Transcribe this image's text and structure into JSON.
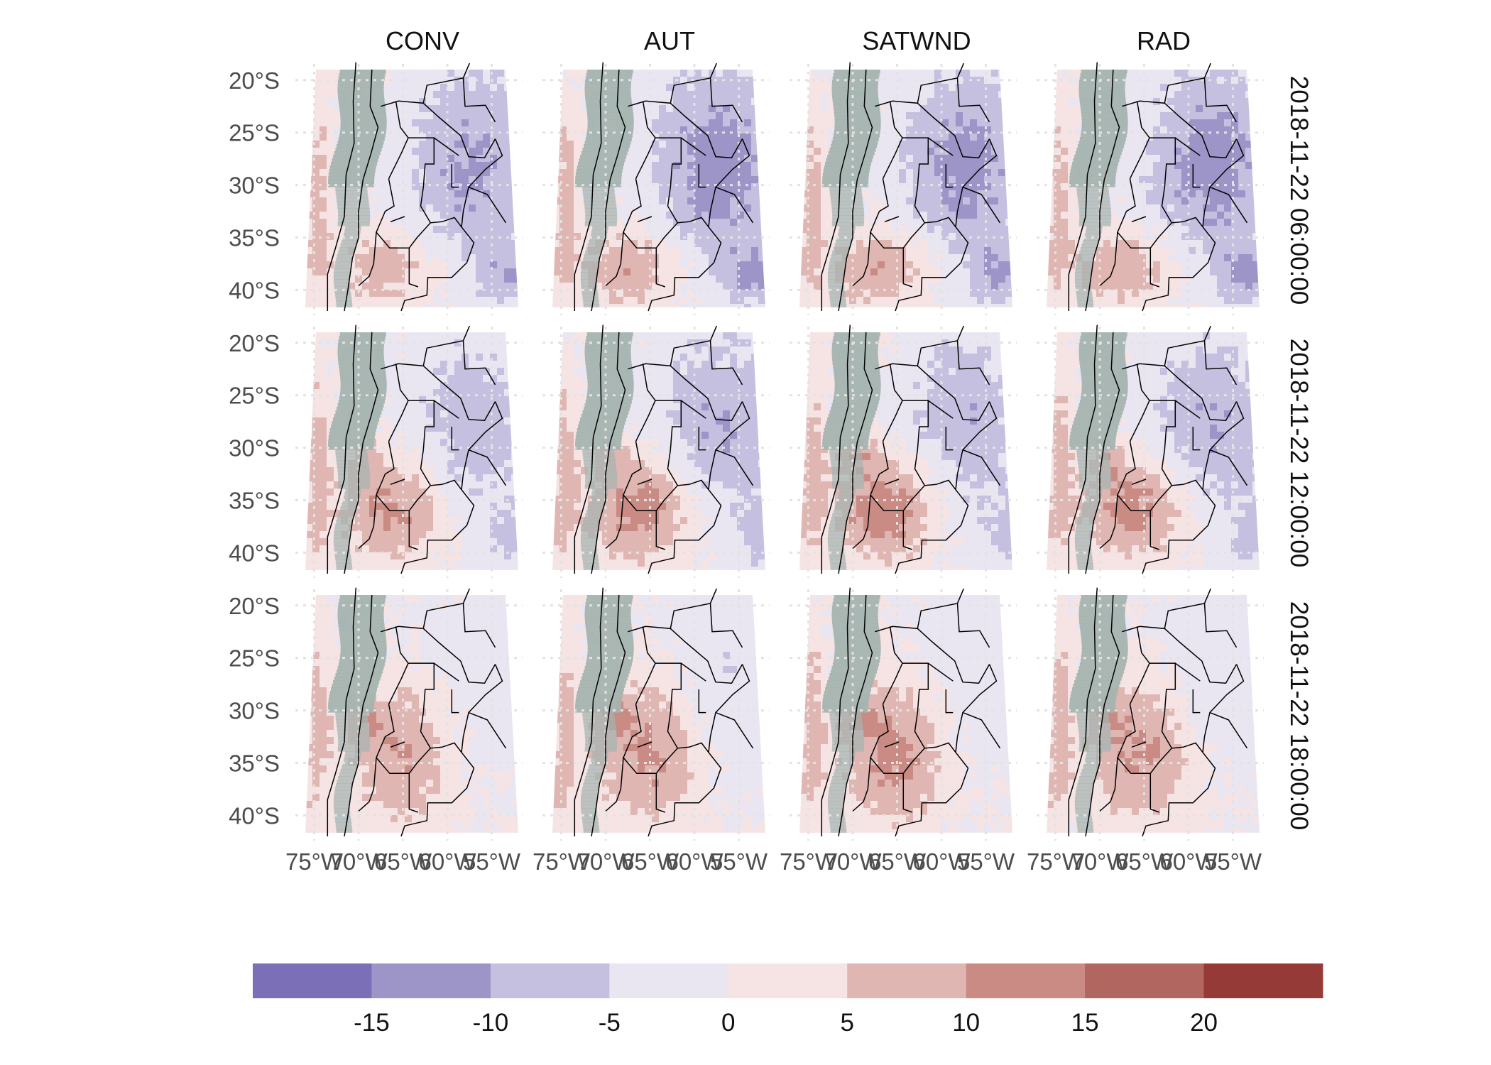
{
  "chart_data": {
    "type": "heatmap",
    "title": "",
    "panels": {
      "columns": [
        "CONV",
        "AUT",
        "SATWND",
        "RAD"
      ],
      "rows": [
        "2018-11-22 06:00:00",
        "2018-11-22 12:00:00",
        "2018-11-22 18:00:00"
      ]
    },
    "x_ticks": [
      "75°W",
      "70°W",
      "65°W",
      "60°W",
      "55°W"
    ],
    "y_ticks": [
      "20°S",
      "25°S",
      "30°S",
      "35°S",
      "40°S"
    ],
    "lon_range": [
      -76,
      -52
    ],
    "lat_range": [
      -42,
      -19
    ],
    "grid": true,
    "colorbar": {
      "position": "bottom",
      "breaks": [
        -20,
        -15,
        -10,
        -5,
        0,
        5,
        10,
        15,
        20,
        25
      ],
      "tick_labels": [
        "-15",
        "-10",
        "-5",
        "0",
        "5",
        "10",
        "15",
        "20"
      ],
      "colors": [
        "#7b6fb7",
        "#9d94c8",
        "#c5bfe0",
        "#e9e6f2",
        "#f5e4e3",
        "#dfb6b2",
        "#c98b84",
        "#b16760",
        "#953a37"
      ]
    },
    "topography_color": "#a5b4b0",
    "border_color": "#000000"
  }
}
